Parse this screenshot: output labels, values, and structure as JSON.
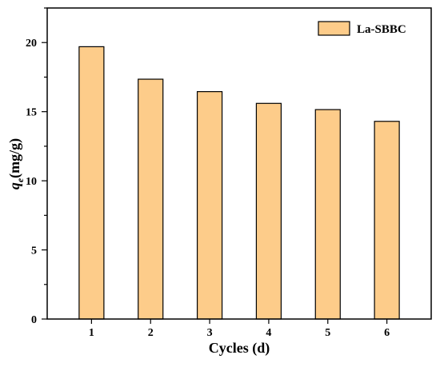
{
  "chart_data": {
    "type": "bar",
    "categories": [
      "1",
      "2",
      "3",
      "4",
      "5",
      "6"
    ],
    "series": [
      {
        "name": "La-SBBC",
        "values": [
          19.7,
          17.35,
          16.45,
          15.6,
          15.15,
          14.3
        ]
      }
    ],
    "xlabel": "Cycles (d)",
    "ylabel": {
      "main": "q",
      "sub": "e",
      "unit": "(mg/g)"
    },
    "ylim": [
      0,
      22.5
    ],
    "yticks": [
      "0",
      "5",
      "10",
      "15",
      "20"
    ],
    "grid": false,
    "legend": "top-right",
    "colors": {
      "bar_fill": "#fdcc8a",
      "bar_stroke": "#000000",
      "axis": "#000000"
    }
  }
}
